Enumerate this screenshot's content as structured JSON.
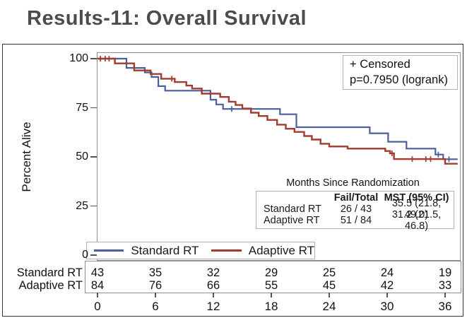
{
  "slide": {
    "title": "Results-11: Overall Survival"
  },
  "chart": {
    "annotation_box": {
      "censored_label": "+ Censored",
      "p_value": "p=0.7950 (logrank)"
    },
    "y_axis": {
      "label": "Percent Alive",
      "ticks": [
        100,
        75,
        50,
        25,
        0
      ]
    },
    "x_axis": {
      "label": "Months Since Randomization",
      "ticks": [
        0,
        6,
        12,
        18,
        24,
        30,
        36
      ]
    },
    "stats_table": {
      "title": "Months Since Randomization",
      "headers": [
        "",
        "Fail/Total",
        "MST (95% CI)"
      ],
      "rows": [
        [
          "Standard RT",
          "26 / 43",
          "35.5 (21.8, 49.0)"
        ],
        [
          "Adaptive RT",
          "51 / 84",
          "31.2 (21.5, 46.8)"
        ]
      ]
    },
    "legend": [
      {
        "label": "Standard RT",
        "color": "#4b5f9e"
      },
      {
        "label": "Adaptive RT",
        "color": "#a33b2e"
      }
    ],
    "at_risk": {
      "rows": [
        {
          "label": "Standard RT",
          "counts": [
            43,
            35,
            32,
            29,
            25,
            24,
            19
          ]
        },
        {
          "label": "Adaptive RT",
          "counts": [
            84,
            76,
            66,
            55,
            45,
            42,
            33
          ]
        }
      ]
    }
  },
  "chart_data": {
    "type": "line",
    "subtype": "kaplan-meier-step",
    "title": "Overall Survival",
    "xlabel": "Months Since Randomization",
    "ylabel": "Percent Alive",
    "xlim": [
      0,
      37.5
    ],
    "ylim": [
      0,
      100
    ],
    "x_ticks": [
      0,
      6,
      12,
      18,
      24,
      30,
      36
    ],
    "y_ticks": [
      0,
      25,
      50,
      75,
      100
    ],
    "x_end": 37.3,
    "grid": false,
    "legend_position": "bottom-inside",
    "p_value_logrank": 0.795,
    "series": [
      {
        "name": "Standard RT",
        "color": "#4b5f9e",
        "stroke_width": 2.2,
        "fail_total": "26 / 43",
        "mst_95ci": "35.5 (21.8, 49.0)",
        "step_points": [
          [
            0,
            100
          ],
          [
            3,
            95.3
          ],
          [
            4.9,
            93
          ],
          [
            5.6,
            90.7
          ],
          [
            6.3,
            86
          ],
          [
            7,
            83.7
          ],
          [
            11.7,
            79.1
          ],
          [
            12.3,
            76.7
          ],
          [
            13,
            74.4
          ],
          [
            18.9,
            71.7
          ],
          [
            20.6,
            65.1
          ],
          [
            28.2,
            62
          ],
          [
            30.1,
            57.7
          ],
          [
            32,
            54.2
          ],
          [
            35,
            51.2
          ],
          [
            35.8,
            48.8
          ]
        ],
        "censor_marks": [
          [
            13.9,
            74.4
          ],
          [
            35.3,
            51.2
          ],
          [
            36.4,
            48.8
          ]
        ]
      },
      {
        "name": "Adaptive RT",
        "color": "#a33b2e",
        "stroke_width": 2.4,
        "fail_total": "51 / 84",
        "mst_95ci": "31.2 (21.5, 46.8)",
        "step_points": [
          [
            0,
            100
          ],
          [
            1.8,
            97.6
          ],
          [
            3.8,
            94
          ],
          [
            5.5,
            92.2
          ],
          [
            6.6,
            89.8
          ],
          [
            8,
            88.1
          ],
          [
            9.2,
            86.3
          ],
          [
            9.8,
            84.8
          ],
          [
            10.8,
            82.2
          ],
          [
            12.7,
            80.5
          ],
          [
            13.6,
            78.1
          ],
          [
            14.3,
            76.4
          ],
          [
            15,
            74.6
          ],
          [
            15.9,
            72.5
          ],
          [
            16.7,
            70.8
          ],
          [
            17.6,
            68.8
          ],
          [
            18.6,
            66.4
          ],
          [
            19.5,
            64.3
          ],
          [
            20.4,
            62.7
          ],
          [
            21.4,
            60.6
          ],
          [
            22.2,
            58.8
          ],
          [
            23.1,
            56.7
          ],
          [
            24,
            55.3
          ],
          [
            25.9,
            54.2
          ],
          [
            29.8,
            53
          ],
          [
            30.3,
            51.8
          ],
          [
            30.7,
            48.9
          ],
          [
            36,
            46.5
          ]
        ],
        "censor_marks": [
          [
            0.3,
            100
          ],
          [
            0.8,
            100
          ],
          [
            1.2,
            100
          ],
          [
            7.7,
            89.8
          ],
          [
            30.5,
            51.8
          ],
          [
            32.6,
            48.9
          ],
          [
            34,
            48.9
          ],
          [
            34.5,
            48.9
          ]
        ]
      }
    ],
    "at_risk_table": {
      "times": [
        0,
        6,
        12,
        18,
        24,
        30,
        36
      ],
      "rows": [
        {
          "name": "Standard RT",
          "counts": [
            43,
            35,
            32,
            29,
            25,
            24,
            19
          ]
        },
        {
          "name": "Adaptive RT",
          "counts": [
            84,
            76,
            66,
            55,
            45,
            42,
            33
          ]
        }
      ]
    }
  }
}
